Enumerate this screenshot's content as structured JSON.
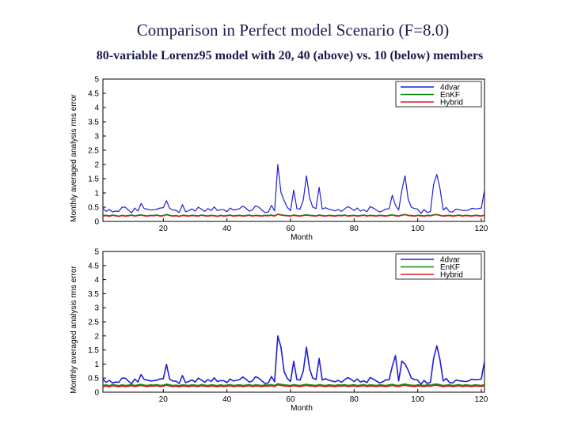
{
  "title": "Comparison in Perfect model Scenario (F=8.0)",
  "subtitle": "80-variable Lorenz95 model with 20, 40 (above) vs. 10 (below) members",
  "colors": {
    "4dvar": "#1f1fd6",
    "EnKF": "#0a8a0a",
    "Hybrid": "#d62020"
  },
  "chart_data": [
    {
      "type": "line",
      "xlabel": "Month",
      "ylabel": "Monthly averaged analysis rms error",
      "xlim": [
        1,
        121
      ],
      "ylim": [
        0,
        5
      ],
      "xticks": [
        20,
        40,
        60,
        80,
        100,
        120
      ],
      "yticks": [
        0,
        0.5,
        1,
        1.5,
        2,
        2.5,
        3,
        3.5,
        4,
        4.5,
        5
      ],
      "legend_position": "top-right",
      "grid": false,
      "series": [
        {
          "name": "4dvar",
          "color": "#1f1fd6",
          "values": [
            0.47,
            0.35,
            0.42,
            0.33,
            0.36,
            0.35,
            0.5,
            0.5,
            0.4,
            0.3,
            0.47,
            0.36,
            0.63,
            0.45,
            0.43,
            0.4,
            0.41,
            0.43,
            0.47,
            0.48,
            0.73,
            0.46,
            0.4,
            0.39,
            0.31,
            0.59,
            0.34,
            0.38,
            0.44,
            0.36,
            0.5,
            0.43,
            0.35,
            0.45,
            0.38,
            0.51,
            0.38,
            0.41,
            0.41,
            0.34,
            0.47,
            0.4,
            0.42,
            0.45,
            0.54,
            0.46,
            0.36,
            0.4,
            0.55,
            0.5,
            0.4,
            0.31,
            0.33,
            0.56,
            0.37,
            2.0,
            1.02,
            0.73,
            0.49,
            0.38,
            1.1,
            0.45,
            0.43,
            0.75,
            1.6,
            0.82,
            0.5,
            0.45,
            1.2,
            0.43,
            0.48,
            0.43,
            0.4,
            0.37,
            0.42,
            0.35,
            0.44,
            0.52,
            0.46,
            0.38,
            0.47,
            0.36,
            0.41,
            0.34,
            0.52,
            0.47,
            0.4,
            0.33,
            0.37,
            0.44,
            0.44,
            0.92,
            0.57,
            0.4,
            1.1,
            1.6,
            0.78,
            0.5,
            0.45,
            0.43,
            0.28,
            0.42,
            0.31,
            0.35,
            1.3,
            1.65,
            1.15,
            0.4,
            0.49,
            0.34,
            0.33,
            0.43,
            0.41,
            0.39,
            0.38,
            0.4,
            0.46,
            0.44,
            0.45,
            0.47,
            1.1
          ]
        },
        {
          "name": "EnKF",
          "color": "#0a8a0a",
          "values": [
            0.21,
            0.22,
            0.2,
            0.23,
            0.21,
            0.19,
            0.22,
            0.2,
            0.21,
            0.23,
            0.2,
            0.22,
            0.24,
            0.21,
            0.2,
            0.22,
            0.21,
            0.23,
            0.2,
            0.21,
            0.25,
            0.22,
            0.2,
            0.21,
            0.19,
            0.22,
            0.21,
            0.2,
            0.22,
            0.21,
            0.2,
            0.23,
            0.21,
            0.2,
            0.22,
            0.21,
            0.19,
            0.22,
            0.2,
            0.21,
            0.23,
            0.2,
            0.21,
            0.22,
            0.2,
            0.21,
            0.23,
            0.2,
            0.22,
            0.21,
            0.2,
            0.22,
            0.21,
            0.23,
            0.2,
            0.26,
            0.24,
            0.22,
            0.21,
            0.2,
            0.23,
            0.21,
            0.2,
            0.22,
            0.24,
            0.22,
            0.21,
            0.2,
            0.23,
            0.21,
            0.2,
            0.22,
            0.21,
            0.2,
            0.22,
            0.21,
            0.23,
            0.2,
            0.21,
            0.22,
            0.2,
            0.21,
            0.23,
            0.2,
            0.22,
            0.21,
            0.2,
            0.22,
            0.21,
            0.2,
            0.22,
            0.24,
            0.21,
            0.2,
            0.23,
            0.25,
            0.22,
            0.21,
            0.2,
            0.22,
            0.21,
            0.2,
            0.22,
            0.21,
            0.24,
            0.25,
            0.22,
            0.2,
            0.21,
            0.22,
            0.2,
            0.21,
            0.23,
            0.2,
            0.22,
            0.21,
            0.2,
            0.22,
            0.21,
            0.2,
            0.23
          ]
        },
        {
          "name": "Hybrid",
          "color": "#d62020",
          "values": [
            0.18,
            0.2,
            0.17,
            0.21,
            0.19,
            0.17,
            0.2,
            0.18,
            0.19,
            0.21,
            0.18,
            0.2,
            0.22,
            0.19,
            0.18,
            0.2,
            0.19,
            0.21,
            0.18,
            0.19,
            0.23,
            0.2,
            0.18,
            0.19,
            0.17,
            0.2,
            0.19,
            0.18,
            0.2,
            0.19,
            0.18,
            0.21,
            0.19,
            0.18,
            0.2,
            0.19,
            0.17,
            0.2,
            0.18,
            0.19,
            0.21,
            0.18,
            0.19,
            0.2,
            0.18,
            0.19,
            0.21,
            0.18,
            0.2,
            0.19,
            0.18,
            0.2,
            0.19,
            0.21,
            0.18,
            0.24,
            0.22,
            0.2,
            0.19,
            0.18,
            0.21,
            0.19,
            0.18,
            0.2,
            0.22,
            0.2,
            0.19,
            0.18,
            0.21,
            0.19,
            0.18,
            0.2,
            0.19,
            0.18,
            0.2,
            0.19,
            0.21,
            0.18,
            0.19,
            0.2,
            0.18,
            0.19,
            0.21,
            0.18,
            0.2,
            0.19,
            0.18,
            0.2,
            0.19,
            0.18,
            0.2,
            0.22,
            0.19,
            0.18,
            0.21,
            0.23,
            0.2,
            0.19,
            0.18,
            0.2,
            0.19,
            0.18,
            0.2,
            0.19,
            0.22,
            0.23,
            0.2,
            0.18,
            0.19,
            0.2,
            0.18,
            0.19,
            0.21,
            0.18,
            0.2,
            0.19,
            0.18,
            0.2,
            0.19,
            0.18,
            0.21
          ]
        }
      ]
    },
    {
      "type": "line",
      "xlabel": "Month",
      "ylabel": "Monthly averaged analysis rms error",
      "xlim": [
        1,
        121
      ],
      "ylim": [
        0,
        5
      ],
      "xticks": [
        20,
        40,
        60,
        80,
        100,
        120
      ],
      "yticks": [
        0,
        0.5,
        1,
        1.5,
        2,
        2.5,
        3,
        3.5,
        4,
        4.5,
        5
      ],
      "legend_position": "top-right",
      "grid": false,
      "series": [
        {
          "name": "4dvar",
          "color": "#1f1fd6",
          "values": [
            0.47,
            0.35,
            0.42,
            0.33,
            0.36,
            0.35,
            0.5,
            0.5,
            0.4,
            0.3,
            0.47,
            0.36,
            0.63,
            0.45,
            0.43,
            0.4,
            0.41,
            0.43,
            0.47,
            0.48,
            0.99,
            0.46,
            0.4,
            0.39,
            0.31,
            0.59,
            0.34,
            0.38,
            0.44,
            0.36,
            0.5,
            0.43,
            0.35,
            0.45,
            0.38,
            0.51,
            0.38,
            0.41,
            0.41,
            0.34,
            0.47,
            0.4,
            0.42,
            0.45,
            0.54,
            0.46,
            0.36,
            0.4,
            0.55,
            0.5,
            0.4,
            0.31,
            0.33,
            0.56,
            0.37,
            2.0,
            1.6,
            0.73,
            0.49,
            0.38,
            1.1,
            0.45,
            0.43,
            0.75,
            1.6,
            0.82,
            0.5,
            0.45,
            1.2,
            0.43,
            0.48,
            0.43,
            0.4,
            0.37,
            0.42,
            0.35,
            0.44,
            0.52,
            0.46,
            0.38,
            0.47,
            0.36,
            0.41,
            0.34,
            0.52,
            0.47,
            0.4,
            0.33,
            0.37,
            0.44,
            0.44,
            0.92,
            1.3,
            0.4,
            1.1,
            1.0,
            0.78,
            0.5,
            0.45,
            0.43,
            0.28,
            0.42,
            0.31,
            0.35,
            1.2,
            1.65,
            1.15,
            0.4,
            0.49,
            0.34,
            0.33,
            0.43,
            0.41,
            0.39,
            0.38,
            0.4,
            0.46,
            0.44,
            0.45,
            0.47,
            1.1
          ]
        },
        {
          "name": "EnKF",
          "color": "#0a8a0a",
          "values": [
            0.24,
            0.26,
            0.23,
            0.27,
            0.25,
            0.23,
            0.26,
            0.24,
            0.25,
            0.27,
            0.24,
            0.26,
            0.28,
            0.25,
            0.24,
            0.26,
            0.25,
            0.27,
            0.24,
            0.25,
            0.29,
            0.26,
            0.24,
            0.25,
            0.23,
            0.26,
            0.25,
            0.24,
            0.26,
            0.25,
            0.24,
            0.27,
            0.25,
            0.24,
            0.26,
            0.25,
            0.23,
            0.26,
            0.24,
            0.25,
            0.27,
            0.24,
            0.25,
            0.26,
            0.24,
            0.25,
            0.27,
            0.24,
            0.26,
            0.25,
            0.24,
            0.26,
            0.25,
            0.27,
            0.24,
            0.3,
            0.28,
            0.26,
            0.25,
            0.24,
            0.27,
            0.25,
            0.24,
            0.26,
            0.28,
            0.26,
            0.25,
            0.24,
            0.27,
            0.25,
            0.24,
            0.26,
            0.25,
            0.24,
            0.26,
            0.25,
            0.27,
            0.24,
            0.25,
            0.26,
            0.24,
            0.25,
            0.27,
            0.24,
            0.26,
            0.25,
            0.24,
            0.26,
            0.25,
            0.24,
            0.26,
            0.28,
            0.25,
            0.24,
            0.27,
            0.29,
            0.26,
            0.25,
            0.24,
            0.26,
            0.25,
            0.24,
            0.26,
            0.25,
            0.28,
            0.29,
            0.26,
            0.24,
            0.25,
            0.26,
            0.24,
            0.25,
            0.27,
            0.24,
            0.26,
            0.25,
            0.24,
            0.26,
            0.25,
            0.24,
            0.27
          ]
        },
        {
          "name": "Hybrid",
          "color": "#d62020",
          "values": [
            0.2,
            0.22,
            0.19,
            0.23,
            0.21,
            0.19,
            0.22,
            0.2,
            0.21,
            0.23,
            0.2,
            0.22,
            0.24,
            0.21,
            0.2,
            0.22,
            0.21,
            0.23,
            0.2,
            0.21,
            0.25,
            0.22,
            0.2,
            0.21,
            0.19,
            0.22,
            0.21,
            0.2,
            0.22,
            0.21,
            0.2,
            0.23,
            0.21,
            0.2,
            0.22,
            0.21,
            0.19,
            0.22,
            0.2,
            0.21,
            0.23,
            0.2,
            0.21,
            0.22,
            0.2,
            0.21,
            0.23,
            0.2,
            0.22,
            0.21,
            0.2,
            0.22,
            0.21,
            0.23,
            0.2,
            0.26,
            0.24,
            0.22,
            0.21,
            0.2,
            0.23,
            0.21,
            0.2,
            0.22,
            0.24,
            0.22,
            0.21,
            0.2,
            0.23,
            0.21,
            0.2,
            0.22,
            0.21,
            0.2,
            0.22,
            0.21,
            0.23,
            0.2,
            0.21,
            0.22,
            0.2,
            0.21,
            0.23,
            0.2,
            0.22,
            0.21,
            0.2,
            0.22,
            0.21,
            0.2,
            0.22,
            0.24,
            0.21,
            0.2,
            0.23,
            0.25,
            0.22,
            0.21,
            0.2,
            0.22,
            0.21,
            0.2,
            0.22,
            0.21,
            0.24,
            0.25,
            0.22,
            0.2,
            0.21,
            0.22,
            0.2,
            0.21,
            0.23,
            0.2,
            0.22,
            0.21,
            0.2,
            0.22,
            0.21,
            0.2,
            0.23
          ]
        }
      ]
    }
  ]
}
